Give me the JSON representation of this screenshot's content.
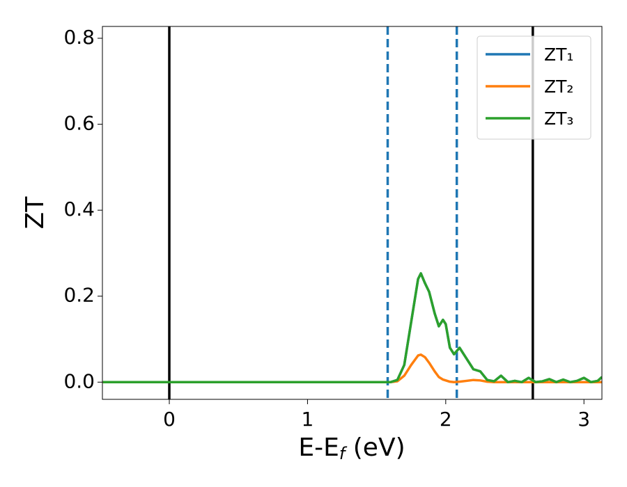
{
  "chart_data": {
    "type": "line",
    "ylabel": "ZT",
    "xlabel": [
      "E-E",
      "f",
      " (eV)"
    ],
    "x": [
      -0.48,
      0,
      0.5,
      1.0,
      1.5,
      1.6,
      1.65,
      1.7,
      1.75,
      1.8,
      1.82,
      1.85,
      1.88,
      1.92,
      1.95,
      1.98,
      2.0,
      2.03,
      2.06,
      2.1,
      2.15,
      2.2,
      2.25,
      2.3,
      2.35,
      2.4,
      2.45,
      2.5,
      2.55,
      2.6,
      2.65,
      2.7,
      2.75,
      2.8,
      2.85,
      2.9,
      2.95,
      3.0,
      3.05,
      3.1,
      3.13
    ],
    "series": [
      {
        "name": "ZT₁",
        "color": "#1f77b4",
        "values": [
          0,
          0,
          0,
          0,
          0,
          0,
          0.005,
          0.04,
          0.14,
          0.24,
          0.253,
          0.23,
          0.21,
          0.16,
          0.13,
          0.145,
          0.135,
          0.08,
          0.065,
          0.08,
          0.055,
          0.03,
          0.025,
          0.005,
          0.002,
          0.015,
          0,
          0.003,
          0,
          0.01,
          0,
          0.002,
          0.007,
          0,
          0.006,
          0,
          0.003,
          0.01,
          0,
          0.003,
          0.012
        ]
      },
      {
        "name": "ZT₂",
        "color": "#ff7f0e",
        "values": [
          0,
          0,
          0,
          0,
          0,
          0,
          0.002,
          0.015,
          0.04,
          0.062,
          0.064,
          0.058,
          0.045,
          0.025,
          0.012,
          0.006,
          0.004,
          0.001,
          0,
          0.001,
          0.003,
          0.005,
          0.004,
          0.001,
          0,
          0,
          0,
          0,
          0,
          0,
          0,
          0,
          0,
          0,
          0,
          0,
          0,
          0,
          0,
          0,
          0
        ]
      },
      {
        "name": "ZT₃",
        "color": "#2ca02c",
        "values": [
          0,
          0,
          0,
          0,
          0,
          0,
          0.005,
          0.04,
          0.14,
          0.24,
          0.253,
          0.23,
          0.21,
          0.16,
          0.13,
          0.145,
          0.135,
          0.08,
          0.065,
          0.08,
          0.055,
          0.03,
          0.025,
          0.005,
          0.002,
          0.015,
          0,
          0.003,
          0,
          0.01,
          0,
          0.002,
          0.007,
          0,
          0.006,
          0,
          0.003,
          0.01,
          0,
          0.003,
          0.012
        ]
      }
    ],
    "vlines": [
      {
        "x": 0,
        "color": "#000000",
        "style": "solid"
      },
      {
        "x": 2.63,
        "color": "#000000",
        "style": "solid"
      },
      {
        "x": 1.58,
        "color": "#1f77b4",
        "style": "dashed"
      },
      {
        "x": 2.08,
        "color": "#1f77b4",
        "style": "dashed"
      }
    ],
    "xlim": [
      -0.484,
      3.13
    ],
    "xticks": [
      0,
      1,
      2,
      3
    ],
    "ylim": [
      -0.04,
      0.8275
    ],
    "yticks": [
      {
        "value": 0,
        "label": "0.0"
      },
      0.2,
      0.4,
      0.6,
      0.8
    ],
    "legend": "upper right"
  }
}
